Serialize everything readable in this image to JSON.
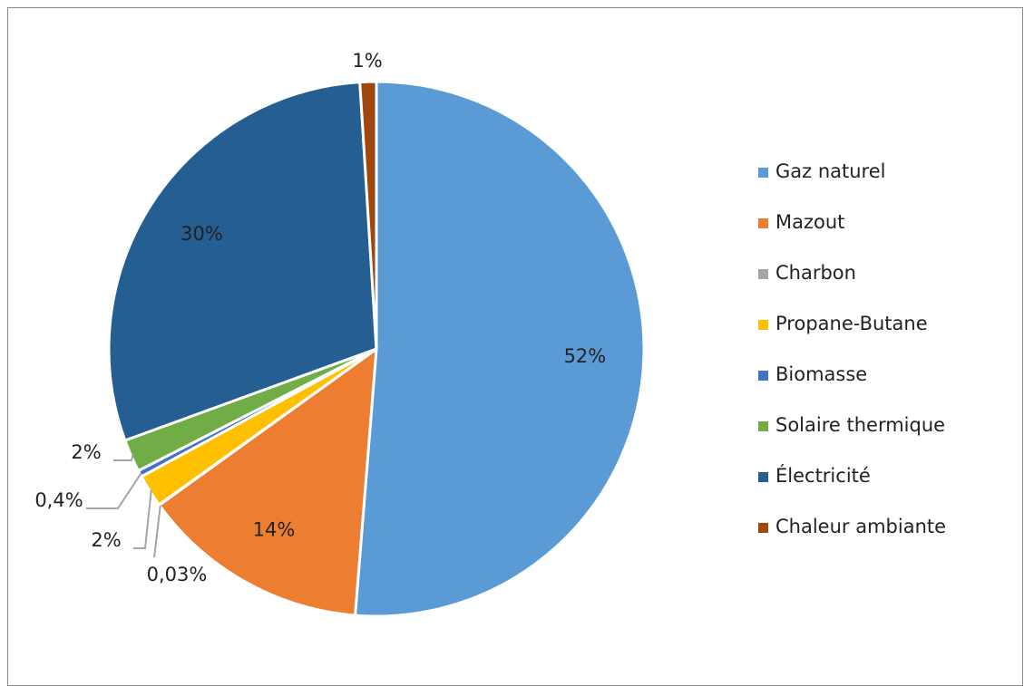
{
  "chart_data": {
    "type": "pie",
    "categories": [
      "Gaz naturel",
      "Mazout",
      "Charbon",
      "Propane-Butane",
      "Biomasse",
      "Solaire thermique",
      "Électricité",
      "Chaleur ambiante"
    ],
    "values": [
      52,
      14,
      0.03,
      2,
      0.4,
      2,
      30,
      1
    ],
    "value_labels": [
      "52%",
      "14%",
      "0,03%",
      "2%",
      "0,4%",
      "2%",
      "30%",
      "1%"
    ],
    "colors": [
      "#5b9bd5",
      "#ed7d31",
      "#a5a5a5",
      "#ffc000",
      "#4472c4",
      "#70ad47",
      "#255e91",
      "#9e480e"
    ],
    "legend": "right"
  }
}
